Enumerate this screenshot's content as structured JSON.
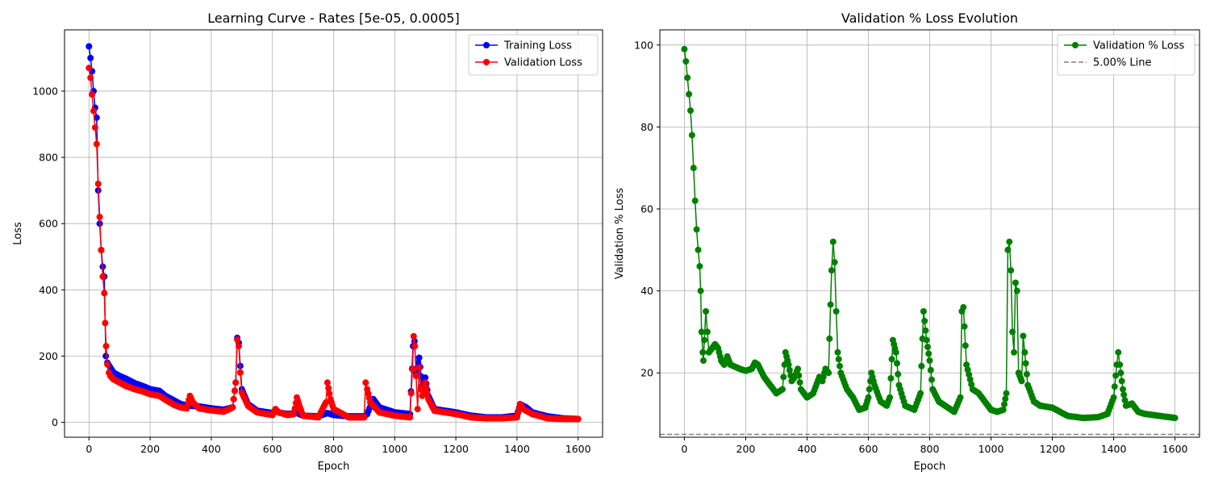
{
  "chart_data": [
    {
      "type": "line",
      "title": "Learning Curve - Rates [5e-05, 0.0005]",
      "xlabel": "Epoch",
      "ylabel": "Loss",
      "xlim": [
        -80,
        1680
      ],
      "ylim": [
        -45,
        1185
      ],
      "xticks": [
        0,
        200,
        400,
        600,
        800,
        1000,
        1200,
        1400,
        1600
      ],
      "yticks": [
        0,
        200,
        400,
        600,
        800,
        1000
      ],
      "grid": true,
      "legend_position": "top-right",
      "marker": "circle",
      "series": [
        {
          "name": "Training Loss",
          "color": "#0000ff",
          "points": [
            [
              0,
              1135
            ],
            [
              5,
              1100
            ],
            [
              10,
              1060
            ],
            [
              15,
              1000
            ],
            [
              20,
              950
            ],
            [
              25,
              920
            ],
            [
              30,
              700
            ],
            [
              35,
              600
            ],
            [
              40,
              520
            ],
            [
              45,
              470
            ],
            [
              50,
              440
            ],
            [
              55,
              200
            ],
            [
              60,
              180
            ],
            [
              70,
              165
            ],
            [
              80,
              150
            ],
            [
              100,
              140
            ],
            [
              120,
              132
            ],
            [
              150,
              118
            ],
            [
              180,
              108
            ],
            [
              200,
              100
            ],
            [
              230,
              95
            ],
            [
              250,
              80
            ],
            [
              280,
              65
            ],
            [
              300,
              55
            ],
            [
              330,
              50
            ],
            [
              360,
              48
            ],
            [
              400,
              42
            ],
            [
              440,
              38
            ],
            [
              470,
              45
            ],
            [
              480,
              120
            ],
            [
              485,
              255
            ],
            [
              490,
              240
            ],
            [
              495,
              170
            ],
            [
              500,
              100
            ],
            [
              520,
              55
            ],
            [
              550,
              35
            ],
            [
              600,
              28
            ],
            [
              610,
              35
            ],
            [
              620,
              30
            ],
            [
              650,
              25
            ],
            [
              680,
              28
            ],
            [
              700,
              20
            ],
            [
              750,
              18
            ],
            [
              780,
              28
            ],
            [
              800,
              22
            ],
            [
              850,
              18
            ],
            [
              900,
              18
            ],
            [
              910,
              25
            ],
            [
              930,
              70
            ],
            [
              950,
              45
            ],
            [
              1000,
              30
            ],
            [
              1050,
              25
            ],
            [
              1060,
              230
            ],
            [
              1065,
              245
            ],
            [
              1070,
              150
            ],
            [
              1080,
              195
            ],
            [
              1090,
              110
            ],
            [
              1100,
              135
            ],
            [
              1110,
              80
            ],
            [
              1130,
              40
            ],
            [
              1200,
              30
            ],
            [
              1250,
              20
            ],
            [
              1300,
              15
            ],
            [
              1350,
              15
            ],
            [
              1400,
              20
            ],
            [
              1410,
              55
            ],
            [
              1430,
              45
            ],
            [
              1450,
              30
            ],
            [
              1500,
              18
            ],
            [
              1550,
              12
            ],
            [
              1600,
              10
            ]
          ]
        },
        {
          "name": "Validation Loss",
          "color": "#ff0000",
          "points": [
            [
              0,
              1070
            ],
            [
              5,
              1040
            ],
            [
              10,
              990
            ],
            [
              15,
              940
            ],
            [
              20,
              890
            ],
            [
              25,
              840
            ],
            [
              30,
              720
            ],
            [
              35,
              620
            ],
            [
              40,
              520
            ],
            [
              45,
              440
            ],
            [
              50,
              390
            ],
            [
              53,
              300
            ],
            [
              56,
              230
            ],
            [
              60,
              175
            ],
            [
              65,
              150
            ],
            [
              70,
              140
            ],
            [
              80,
              130
            ],
            [
              100,
              120
            ],
            [
              120,
              110
            ],
            [
              150,
              100
            ],
            [
              180,
              92
            ],
            [
              200,
              85
            ],
            [
              230,
              80
            ],
            [
              250,
              68
            ],
            [
              280,
              52
            ],
            [
              300,
              45
            ],
            [
              320,
              42
            ],
            [
              330,
              80
            ],
            [
              340,
              60
            ],
            [
              360,
              42
            ],
            [
              400,
              36
            ],
            [
              440,
              32
            ],
            [
              460,
              40
            ],
            [
              470,
              45
            ],
            [
              480,
              120
            ],
            [
              485,
              250
            ],
            [
              490,
              230
            ],
            [
              495,
              150
            ],
            [
              500,
              90
            ],
            [
              520,
              50
            ],
            [
              550,
              30
            ],
            [
              600,
              22
            ],
            [
              610,
              40
            ],
            [
              620,
              30
            ],
            [
              650,
              22
            ],
            [
              670,
              25
            ],
            [
              680,
              75
            ],
            [
              690,
              45
            ],
            [
              700,
              20
            ],
            [
              750,
              15
            ],
            [
              775,
              60
            ],
            [
              780,
              120
            ],
            [
              790,
              70
            ],
            [
              800,
              40
            ],
            [
              850,
              15
            ],
            [
              900,
              15
            ],
            [
              905,
              120
            ],
            [
              910,
              100
            ],
            [
              920,
              60
            ],
            [
              950,
              30
            ],
            [
              1000,
              20
            ],
            [
              1050,
              15
            ],
            [
              1058,
              160
            ],
            [
              1062,
              260
            ],
            [
              1066,
              230
            ],
            [
              1070,
              140
            ],
            [
              1075,
              40
            ],
            [
              1080,
              165
            ],
            [
              1085,
              100
            ],
            [
              1090,
              80
            ],
            [
              1100,
              120
            ],
            [
              1110,
              70
            ],
            [
              1130,
              35
            ],
            [
              1200,
              25
            ],
            [
              1250,
              15
            ],
            [
              1300,
              12
            ],
            [
              1350,
              12
            ],
            [
              1400,
              15
            ],
            [
              1410,
              55
            ],
            [
              1420,
              40
            ],
            [
              1440,
              30
            ],
            [
              1450,
              25
            ],
            [
              1500,
              12
            ],
            [
              1550,
              10
            ],
            [
              1600,
              10
            ]
          ]
        }
      ]
    },
    {
      "type": "line",
      "title": "Validation % Loss Evolution",
      "xlabel": "Epoch",
      "ylabel": "Validation % Loss",
      "xlim": [
        -80,
        1680
      ],
      "ylim": [
        4.3,
        103.7
      ],
      "xticks": [
        0,
        200,
        400,
        600,
        800,
        1000,
        1200,
        1400,
        1600
      ],
      "yticks": [
        20,
        40,
        60,
        80,
        100
      ],
      "grid": true,
      "legend_position": "top-right",
      "marker": "circle",
      "reference_line": {
        "y": 5.0,
        "label": "5.00% Line",
        "color": "#808080",
        "style": "dashed"
      },
      "series": [
        {
          "name": "Validation % Loss",
          "color": "#008000",
          "points": [
            [
              0,
              99
            ],
            [
              5,
              96
            ],
            [
              10,
              92
            ],
            [
              15,
              88
            ],
            [
              20,
              84
            ],
            [
              25,
              78
            ],
            [
              30,
              70
            ],
            [
              35,
              62
            ],
            [
              40,
              55
            ],
            [
              45,
              50
            ],
            [
              50,
              46
            ],
            [
              53,
              40
            ],
            [
              56,
              30
            ],
            [
              60,
              25
            ],
            [
              62,
              23
            ],
            [
              65,
              28
            ],
            [
              70,
              35
            ],
            [
              75,
              30
            ],
            [
              80,
              25
            ],
            [
              90,
              26
            ],
            [
              100,
              27
            ],
            [
              110,
              26
            ],
            [
              120,
              23
            ],
            [
              130,
              22
            ],
            [
              140,
              24
            ],
            [
              150,
              22
            ],
            [
              180,
              21
            ],
            [
              200,
              20.5
            ],
            [
              220,
              21
            ],
            [
              230,
              22.5
            ],
            [
              240,
              22
            ],
            [
              260,
              19
            ],
            [
              280,
              17
            ],
            [
              300,
              15
            ],
            [
              320,
              16
            ],
            [
              330,
              25
            ],
            [
              340,
              22
            ],
            [
              350,
              18
            ],
            [
              360,
              19
            ],
            [
              370,
              21
            ],
            [
              380,
              16
            ],
            [
              400,
              14
            ],
            [
              420,
              15
            ],
            [
              440,
              19
            ],
            [
              450,
              18
            ],
            [
              460,
              21
            ],
            [
              470,
              20
            ],
            [
              480,
              45
            ],
            [
              485,
              52
            ],
            [
              490,
              47
            ],
            [
              495,
              35
            ],
            [
              500,
              25
            ],
            [
              510,
              20
            ],
            [
              530,
              16
            ],
            [
              550,
              14
            ],
            [
              570,
              11
            ],
            [
              590,
              11.5
            ],
            [
              600,
              14
            ],
            [
              610,
              20
            ],
            [
              620,
              17
            ],
            [
              640,
              13
            ],
            [
              660,
              12
            ],
            [
              670,
              14
            ],
            [
              680,
              28
            ],
            [
              690,
              25
            ],
            [
              700,
              17
            ],
            [
              720,
              12
            ],
            [
              750,
              11
            ],
            [
              770,
              15
            ],
            [
              780,
              35
            ],
            [
              790,
              28
            ],
            [
              800,
              23
            ],
            [
              810,
              16
            ],
            [
              830,
              13
            ],
            [
              850,
              12
            ],
            [
              870,
              11
            ],
            [
              880,
              10.5
            ],
            [
              900,
              14
            ],
            [
              905,
              35
            ],
            [
              910,
              36
            ],
            [
              920,
              22
            ],
            [
              940,
              16
            ],
            [
              960,
              15
            ],
            [
              980,
              13
            ],
            [
              1000,
              11
            ],
            [
              1020,
              10.5
            ],
            [
              1040,
              11
            ],
            [
              1050,
              15
            ],
            [
              1055,
              50
            ],
            [
              1060,
              52
            ],
            [
              1065,
              45
            ],
            [
              1070,
              30
            ],
            [
              1075,
              25
            ],
            [
              1080,
              42
            ],
            [
              1085,
              40
            ],
            [
              1090,
              20
            ],
            [
              1100,
              18
            ],
            [
              1105,
              29
            ],
            [
              1110,
              25
            ],
            [
              1120,
              17
            ],
            [
              1140,
              13
            ],
            [
              1160,
              12
            ],
            [
              1200,
              11.5
            ],
            [
              1250,
              9.5
            ],
            [
              1300,
              9
            ],
            [
              1350,
              9.2
            ],
            [
              1380,
              10
            ],
            [
              1400,
              14
            ],
            [
              1410,
              22
            ],
            [
              1415,
              25
            ],
            [
              1420,
              22
            ],
            [
              1430,
              16
            ],
            [
              1440,
              12
            ],
            [
              1460,
              12.5
            ],
            [
              1480,
              10.5
            ],
            [
              1500,
              10
            ],
            [
              1550,
              9.5
            ],
            [
              1600,
              9
            ]
          ]
        }
      ]
    }
  ]
}
